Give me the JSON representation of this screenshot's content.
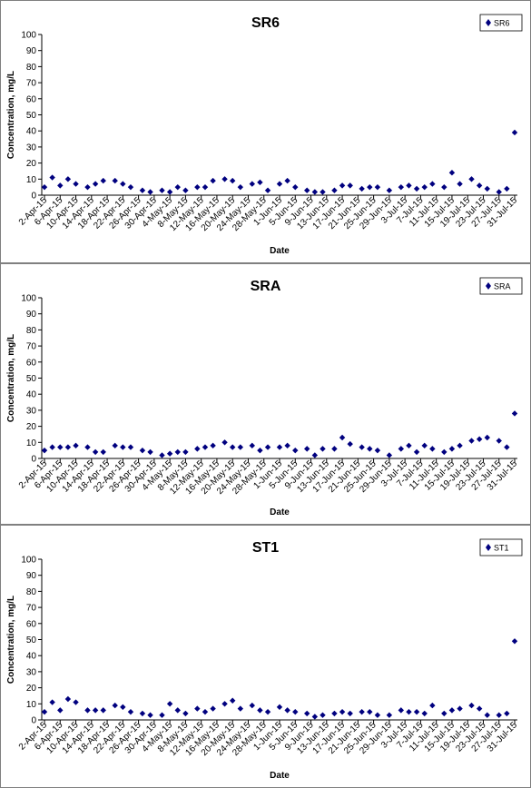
{
  "chart_data": [
    {
      "type": "scatter",
      "title": "SR6",
      "xlabel": "Date",
      "ylabel": "Concentration, mg/L",
      "ylim": [
        0,
        100
      ],
      "yticks": [
        0,
        10,
        20,
        30,
        40,
        50,
        60,
        70,
        80,
        90,
        100
      ],
      "grid": false,
      "legend": "top-right",
      "marker_color": "#00007F",
      "xticks": [
        "2-Apr-15",
        "6-Apr-15",
        "10-Apr-15",
        "14-Apr-15",
        "18-Apr-15",
        "22-Apr-15",
        "26-Apr-15",
        "30-Apr-15",
        "4-May-15",
        "8-May-15",
        "12-May-15",
        "16-May-15",
        "20-May-15",
        "24-May-15",
        "28-May-15",
        "1-Jun-15",
        "5-Jun-15",
        "9-Jun-15",
        "13-Jun-15",
        "17-Jun-15",
        "21-Jun-15",
        "25-Jun-15",
        "29-Jun-15",
        "3-Jul-15",
        "7-Jul-15",
        "11-Jul-15",
        "15-Jul-15",
        "19-Jul-15",
        "23-Jul-15",
        "27-Jul-15",
        "31-Jul-15"
      ],
      "series": [
        {
          "name": "SR6",
          "x": [
            "2-Apr-15",
            "4-Apr-15",
            "6-Apr-15",
            "8-Apr-15",
            "10-Apr-15",
            "13-Apr-15",
            "15-Apr-15",
            "17-Apr-15",
            "20-Apr-15",
            "22-Apr-15",
            "24-Apr-15",
            "27-Apr-15",
            "29-Apr-15",
            "2-May-15",
            "4-May-15",
            "6-May-15",
            "8-May-15",
            "11-May-15",
            "13-May-15",
            "15-May-15",
            "18-May-15",
            "20-May-15",
            "22-May-15",
            "25-May-15",
            "27-May-15",
            "29-May-15",
            "1-Jun-15",
            "3-Jun-15",
            "5-Jun-15",
            "8-Jun-15",
            "10-Jun-15",
            "12-Jun-15",
            "15-Jun-15",
            "17-Jun-15",
            "19-Jun-15",
            "22-Jun-15",
            "24-Jun-15",
            "26-Jun-15",
            "29-Jun-15",
            "2-Jul-15",
            "4-Jul-15",
            "6-Jul-15",
            "8-Jul-15",
            "10-Jul-15",
            "13-Jul-15",
            "15-Jul-15",
            "17-Jul-15",
            "20-Jul-15",
            "22-Jul-15",
            "24-Jul-15",
            "27-Jul-15",
            "29-Jul-15",
            "31-Jul-15"
          ],
          "y": [
            5,
            11,
            6,
            10,
            7,
            5,
            7,
            9,
            9,
            7,
            5,
            3,
            2,
            3,
            2,
            5,
            3,
            5,
            5,
            9,
            10,
            9,
            5,
            7,
            8,
            3,
            7,
            9,
            5,
            3,
            2,
            2,
            3,
            6,
            6,
            4,
            5,
            5,
            3,
            5,
            6,
            4,
            5,
            7,
            5,
            14,
            7,
            10,
            6,
            4,
            2,
            4,
            39
          ]
        }
      ]
    },
    {
      "type": "scatter",
      "title": "SRA",
      "xlabel": "Date",
      "ylabel": "Concentration, mg/L",
      "ylim": [
        0,
        100
      ],
      "yticks": [
        0,
        10,
        20,
        30,
        40,
        50,
        60,
        70,
        80,
        90,
        100
      ],
      "grid": false,
      "legend": "top-right",
      "marker_color": "#00007F",
      "xticks": [
        "2-Apr-15",
        "6-Apr-15",
        "10-Apr-15",
        "14-Apr-15",
        "18-Apr-15",
        "22-Apr-15",
        "26-Apr-15",
        "30-Apr-15",
        "4-May-15",
        "8-May-15",
        "12-May-15",
        "16-May-15",
        "20-May-15",
        "24-May-15",
        "28-May-15",
        "1-Jun-15",
        "5-Jun-15",
        "9-Jun-15",
        "13-Jun-15",
        "17-Jun-15",
        "21-Jun-15",
        "25-Jun-15",
        "29-Jun-15",
        "3-Jul-15",
        "7-Jul-15",
        "11-Jul-15",
        "15-Jul-15",
        "19-Jul-15",
        "23-Jul-15",
        "27-Jul-15",
        "31-Jul-15"
      ],
      "series": [
        {
          "name": "SRA",
          "x": [
            "2-Apr-15",
            "4-Apr-15",
            "6-Apr-15",
            "8-Apr-15",
            "10-Apr-15",
            "13-Apr-15",
            "15-Apr-15",
            "17-Apr-15",
            "20-Apr-15",
            "22-Apr-15",
            "24-Apr-15",
            "27-Apr-15",
            "29-Apr-15",
            "2-May-15",
            "4-May-15",
            "6-May-15",
            "8-May-15",
            "11-May-15",
            "13-May-15",
            "15-May-15",
            "18-May-15",
            "20-May-15",
            "22-May-15",
            "25-May-15",
            "27-May-15",
            "29-May-15",
            "1-Jun-15",
            "3-Jun-15",
            "5-Jun-15",
            "8-Jun-15",
            "10-Jun-15",
            "12-Jun-15",
            "15-Jun-15",
            "17-Jun-15",
            "19-Jun-15",
            "22-Jun-15",
            "24-Jun-15",
            "26-Jun-15",
            "29-Jun-15",
            "2-Jul-15",
            "4-Jul-15",
            "6-Jul-15",
            "8-Jul-15",
            "10-Jul-15",
            "13-Jul-15",
            "15-Jul-15",
            "17-Jul-15",
            "20-Jul-15",
            "22-Jul-15",
            "24-Jul-15",
            "27-Jul-15",
            "29-Jul-15",
            "31-Jul-15"
          ],
          "y": [
            5,
            7,
            7,
            7,
            8,
            7,
            4,
            4,
            8,
            7,
            7,
            5,
            4,
            2,
            3,
            4,
            4,
            6,
            7,
            8,
            10,
            7,
            7,
            8,
            5,
            7,
            7,
            8,
            5,
            6,
            2,
            6,
            6,
            13,
            9,
            7,
            6,
            5,
            2,
            6,
            8,
            4,
            8,
            6,
            4,
            6,
            8,
            11,
            12,
            13,
            11,
            7,
            28
          ]
        }
      ]
    },
    {
      "type": "scatter",
      "title": "ST1",
      "xlabel": "Date",
      "ylabel": "Concentration, mg/L",
      "ylim": [
        0,
        100
      ],
      "yticks": [
        0,
        10,
        20,
        30,
        40,
        50,
        60,
        70,
        80,
        90,
        100
      ],
      "grid": false,
      "legend": "top-right",
      "marker_color": "#00007F",
      "xticks": [
        "2-Apr-15",
        "6-Apr-15",
        "10-Apr-15",
        "14-Apr-15",
        "18-Apr-15",
        "22-Apr-15",
        "26-Apr-15",
        "30-Apr-15",
        "4-May-15",
        "8-May-15",
        "12-May-15",
        "16-May-15",
        "20-May-15",
        "24-May-15",
        "28-May-15",
        "1-Jun-15",
        "5-Jun-15",
        "9-Jun-15",
        "13-Jun-15",
        "17-Jun-15",
        "21-Jun-15",
        "25-Jun-15",
        "29-Jun-15",
        "3-Jul-15",
        "7-Jul-15",
        "11-Jul-15",
        "15-Jul-15",
        "19-Jul-15",
        "23-Jul-15",
        "27-Jul-15",
        "31-Jul-15"
      ],
      "series": [
        {
          "name": "ST1",
          "x": [
            "2-Apr-15",
            "4-Apr-15",
            "6-Apr-15",
            "8-Apr-15",
            "10-Apr-15",
            "13-Apr-15",
            "15-Apr-15",
            "17-Apr-15",
            "20-Apr-15",
            "22-Apr-15",
            "24-Apr-15",
            "27-Apr-15",
            "29-Apr-15",
            "2-May-15",
            "4-May-15",
            "6-May-15",
            "8-May-15",
            "11-May-15",
            "13-May-15",
            "15-May-15",
            "18-May-15",
            "20-May-15",
            "22-May-15",
            "25-May-15",
            "27-May-15",
            "29-May-15",
            "1-Jun-15",
            "3-Jun-15",
            "5-Jun-15",
            "8-Jun-15",
            "10-Jun-15",
            "12-Jun-15",
            "15-Jun-15",
            "17-Jun-15",
            "19-Jun-15",
            "22-Jun-15",
            "24-Jun-15",
            "26-Jun-15",
            "29-Jun-15",
            "2-Jul-15",
            "4-Jul-15",
            "6-Jul-15",
            "8-Jul-15",
            "10-Jul-15",
            "13-Jul-15",
            "15-Jul-15",
            "17-Jul-15",
            "20-Jul-15",
            "22-Jul-15",
            "24-Jul-15",
            "27-Jul-15",
            "29-Jul-15",
            "31-Jul-15"
          ],
          "y": [
            5,
            11,
            6,
            13,
            11,
            6,
            6,
            6,
            9,
            8,
            5,
            4,
            3,
            3,
            10,
            6,
            4,
            7,
            5,
            7,
            10,
            12,
            7,
            9,
            6,
            5,
            8,
            6,
            5,
            4,
            2,
            3,
            4,
            5,
            4,
            5,
            5,
            3,
            3,
            6,
            5,
            5,
            4,
            9,
            4,
            6,
            7,
            9,
            7,
            3,
            3,
            4,
            49
          ]
        }
      ]
    }
  ]
}
